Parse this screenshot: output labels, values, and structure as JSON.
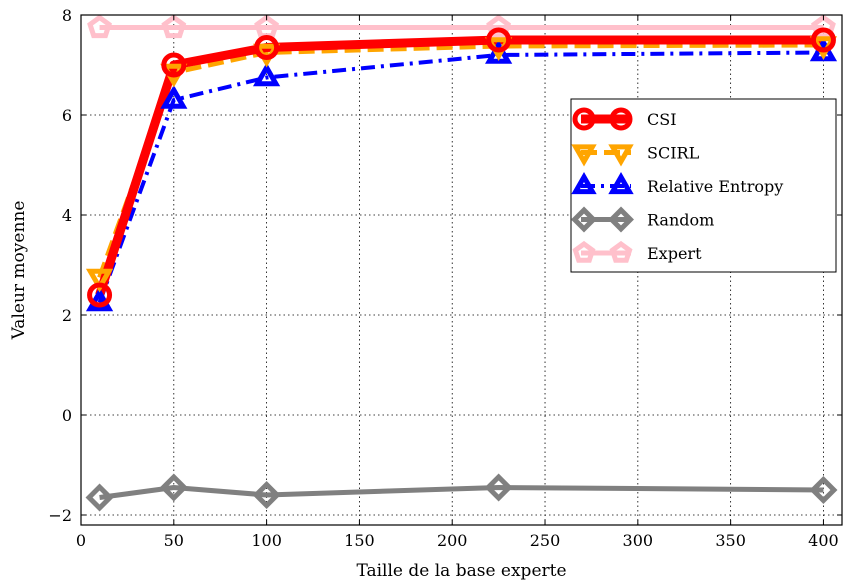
{
  "chart_data": {
    "type": "line",
    "xlabel": "Taille de la base experte",
    "ylabel": "Valeur moyenne",
    "xlim": [
      0,
      410
    ],
    "ylim": [
      -2.2,
      8
    ],
    "xticks": [
      0,
      50,
      100,
      150,
      200,
      250,
      300,
      350,
      400
    ],
    "yticks": [
      -2,
      0,
      2,
      4,
      6,
      8
    ],
    "ytick_labels": [
      "−2",
      "0",
      "2",
      "4",
      "6",
      "8"
    ],
    "grid": true,
    "legend_position": "right",
    "x": [
      10,
      50,
      100,
      225,
      400
    ],
    "series": [
      {
        "name": "CSI",
        "values": [
          2.4,
          7.0,
          7.35,
          7.5,
          7.5
        ],
        "color": "#ff0000",
        "marker": "circle",
        "linestyle": "solid"
      },
      {
        "name": "SCIRL",
        "values": [
          2.75,
          6.85,
          7.25,
          7.38,
          7.4
        ],
        "color": "#ffa500",
        "marker": "triangle-down",
        "linestyle": "dashed"
      },
      {
        "name": "Relative Entropy",
        "values": [
          2.25,
          6.3,
          6.75,
          7.2,
          7.25
        ],
        "color": "#0000ff",
        "marker": "triangle-up",
        "linestyle": "dashdot"
      },
      {
        "name": "Random",
        "values": [
          -1.65,
          -1.45,
          -1.6,
          -1.45,
          -1.5
        ],
        "color": "#808080",
        "marker": "diamond",
        "linestyle": "solid"
      },
      {
        "name": "Expert",
        "values": [
          7.75,
          7.75,
          7.75,
          7.75,
          7.75
        ],
        "color": "#ffc0cb",
        "marker": "pentagon",
        "linestyle": "solid"
      }
    ]
  }
}
